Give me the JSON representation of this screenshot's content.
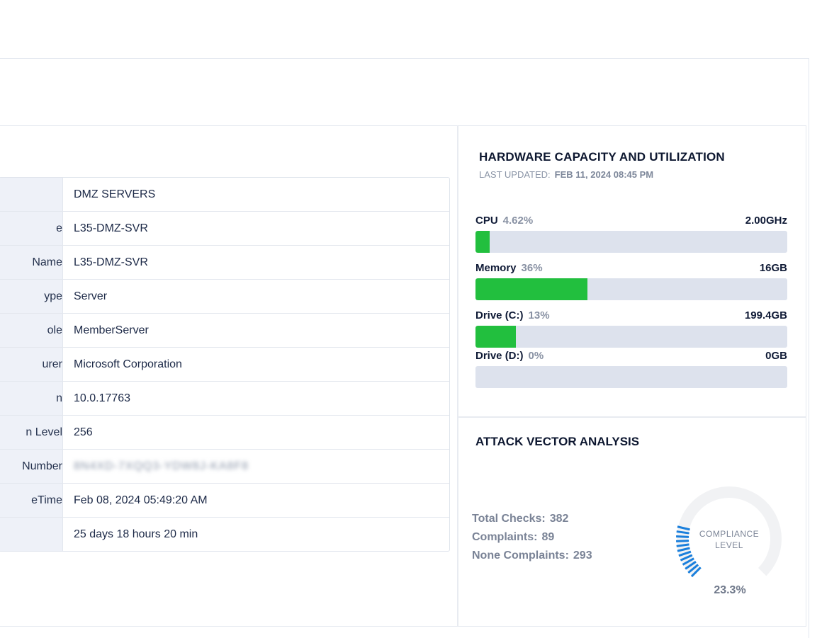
{
  "info_table": [
    {
      "key": "",
      "value": "DMZ SERVERS"
    },
    {
      "key": "e",
      "value": "L35-DMZ-SVR"
    },
    {
      "key": " Name",
      "value": "L35-DMZ-SVR"
    },
    {
      "key": "ype",
      "value": "Server"
    },
    {
      "key": "ole",
      "value": "MemberServer"
    },
    {
      "key": "urer",
      "value": "Microsoft Corporation"
    },
    {
      "key": "n",
      "value": "10.0.17763"
    },
    {
      "key": "n Level",
      "value": "256"
    },
    {
      "key": "Number",
      "value": "8N4XD-7XQQ3-YDW8J-KA8F8"
    },
    {
      "key": "eTime",
      "value": "Feb 08, 2024 05:49:20 AM"
    },
    {
      "key": "",
      "value": "25 days 18 hours 20 min"
    }
  ],
  "hardware": {
    "title": "HARDWARE CAPACITY AND UTILIZATION",
    "updated_label": "LAST UPDATED:",
    "updated_value": "FEB 11, 2024 08:45 PM",
    "metrics": [
      {
        "name": "CPU",
        "percent_label": "4.62%",
        "capacity": "2.00GHz",
        "fill": 0.0462
      },
      {
        "name": "Memory",
        "percent_label": "36%",
        "capacity": "16GB",
        "fill": 0.36
      },
      {
        "name": "Drive (C:)",
        "percent_label": "13%",
        "capacity": "199.4GB",
        "fill": 0.13
      },
      {
        "name": "Drive (D:)",
        "percent_label": "0%",
        "capacity": "0GB",
        "fill": 0.0
      }
    ],
    "colors": {
      "fill": "#22bf3e",
      "track": "#dde2ed"
    }
  },
  "attack_vector": {
    "title": "ATTACK VECTOR ANALYSIS",
    "total_checks_label": "Total Checks:",
    "total_checks_value": "382",
    "complaints_label": "Complaints:",
    "complaints_value": "89",
    "none_complaints_label": "None Complaints:",
    "none_complaints_value": "293",
    "gauge_label": "COMPLIANCE LEVEL",
    "gauge_value": "23.3%",
    "gauge_fraction": 0.233,
    "colors": {
      "gauge_fill": "#1a7fdc",
      "gauge_track": "#f1f2f4"
    }
  }
}
